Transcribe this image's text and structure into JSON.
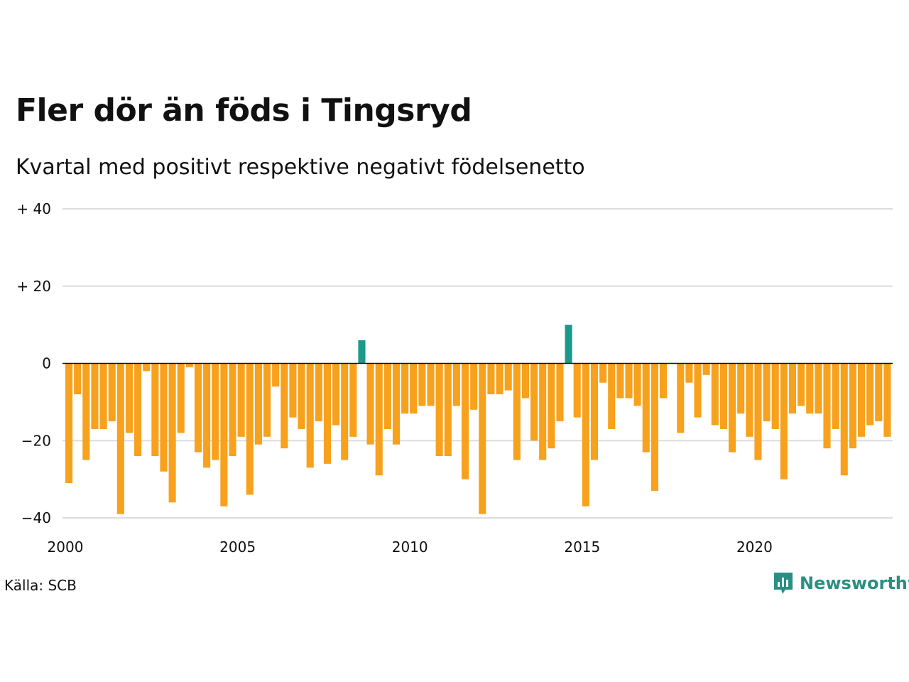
{
  "title": "Fler dör än föds i Tingsryd",
  "subtitle": "Kvartal med positivt respektive negativt födelsenetto",
  "source": "Källa: SCB",
  "brand": {
    "name": "Newsworthy",
    "icon": "newsworthy-logo-icon"
  },
  "colors": {
    "negative": "#f7a11d",
    "positive": "#1a9a8a",
    "grid": "#dddddd",
    "zero": "#111111"
  },
  "chart_data": {
    "type": "bar",
    "x_start_year": 2000,
    "quarters_per_year": 4,
    "ylim": [
      -40,
      40
    ],
    "yticks": [
      -40,
      -20,
      0,
      20,
      40
    ],
    "ytick_labels": [
      "−40",
      "−20",
      "0",
      "+ 20",
      "+ 40"
    ],
    "xticks": [
      "2000",
      "2005",
      "2010",
      "2015",
      "2020"
    ],
    "xlabel": "",
    "ylabel": "",
    "grid": true,
    "values": [
      -31,
      -8,
      -25,
      -17,
      -17,
      -15,
      -39,
      -18,
      -24,
      -2,
      -24,
      -28,
      -36,
      -18,
      -1,
      -23,
      -27,
      -25,
      -37,
      -24,
      -19,
      -34,
      -21,
      -19,
      -6,
      -22,
      -14,
      -17,
      -27,
      -15,
      -26,
      -16,
      -25,
      -19,
      6,
      -21,
      -29,
      -17,
      -21,
      -13,
      -13,
      -11,
      -11,
      -24,
      -24,
      -11,
      -30,
      -12,
      -39,
      -8,
      -8,
      -7,
      -25,
      -9,
      -20,
      -25,
      -22,
      -15,
      10,
      -14,
      -37,
      -25,
      -5,
      -17,
      -9,
      -9,
      -11,
      -23,
      -33,
      -9,
      0,
      -18,
      -5,
      -14,
      -3,
      -16,
      -17,
      -23,
      -13,
      -19,
      -25,
      -15,
      -17,
      -30,
      -13,
      -11,
      -13,
      -13,
      -22,
      -17,
      -29,
      -22,
      -19,
      -16,
      -15,
      -19
    ]
  }
}
